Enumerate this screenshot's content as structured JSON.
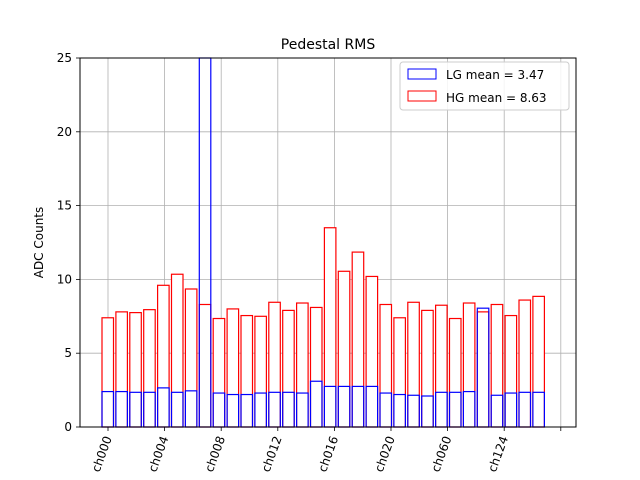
{
  "chart_data": {
    "type": "bar",
    "title": "Pedestal RMS",
    "xlabel": "",
    "ylabel": "ADC Counts",
    "ylim": [
      0,
      25
    ],
    "y_ticks": [
      0,
      5,
      10,
      15,
      20,
      25
    ],
    "x_tick_labels": [
      "ch000",
      "ch004",
      "ch008",
      "ch012",
      "ch016",
      "ch020",
      "ch060",
      "ch124"
    ],
    "grid": true,
    "legend_position": "top-right",
    "n_bins": 32,
    "series": [
      {
        "name": "LG mean = 3.47",
        "color": "#0000ff",
        "values": [
          2.4,
          2.4,
          2.35,
          2.35,
          2.65,
          2.35,
          2.45,
          25,
          2.3,
          2.2,
          2.2,
          2.3,
          2.35,
          2.35,
          2.3,
          3.1,
          2.75,
          2.75,
          2.75,
          2.75,
          2.3,
          2.2,
          2.15,
          2.1,
          2.35,
          2.35,
          2.4,
          8.05,
          2.15,
          2.3,
          2.35,
          2.35
        ]
      },
      {
        "name": "HG mean = 8.63",
        "color": "#ff0000",
        "values": [
          7.4,
          7.8,
          7.75,
          7.95,
          9.6,
          10.35,
          9.35,
          8.3,
          7.35,
          8.0,
          7.55,
          7.5,
          8.45,
          7.9,
          8.4,
          8.1,
          13.5,
          10.55,
          11.85,
          10.2,
          8.3,
          7.4,
          8.45,
          7.9,
          8.25,
          7.35,
          8.4,
          7.8,
          8.3,
          7.55,
          8.6,
          8.85
        ]
      }
    ]
  }
}
